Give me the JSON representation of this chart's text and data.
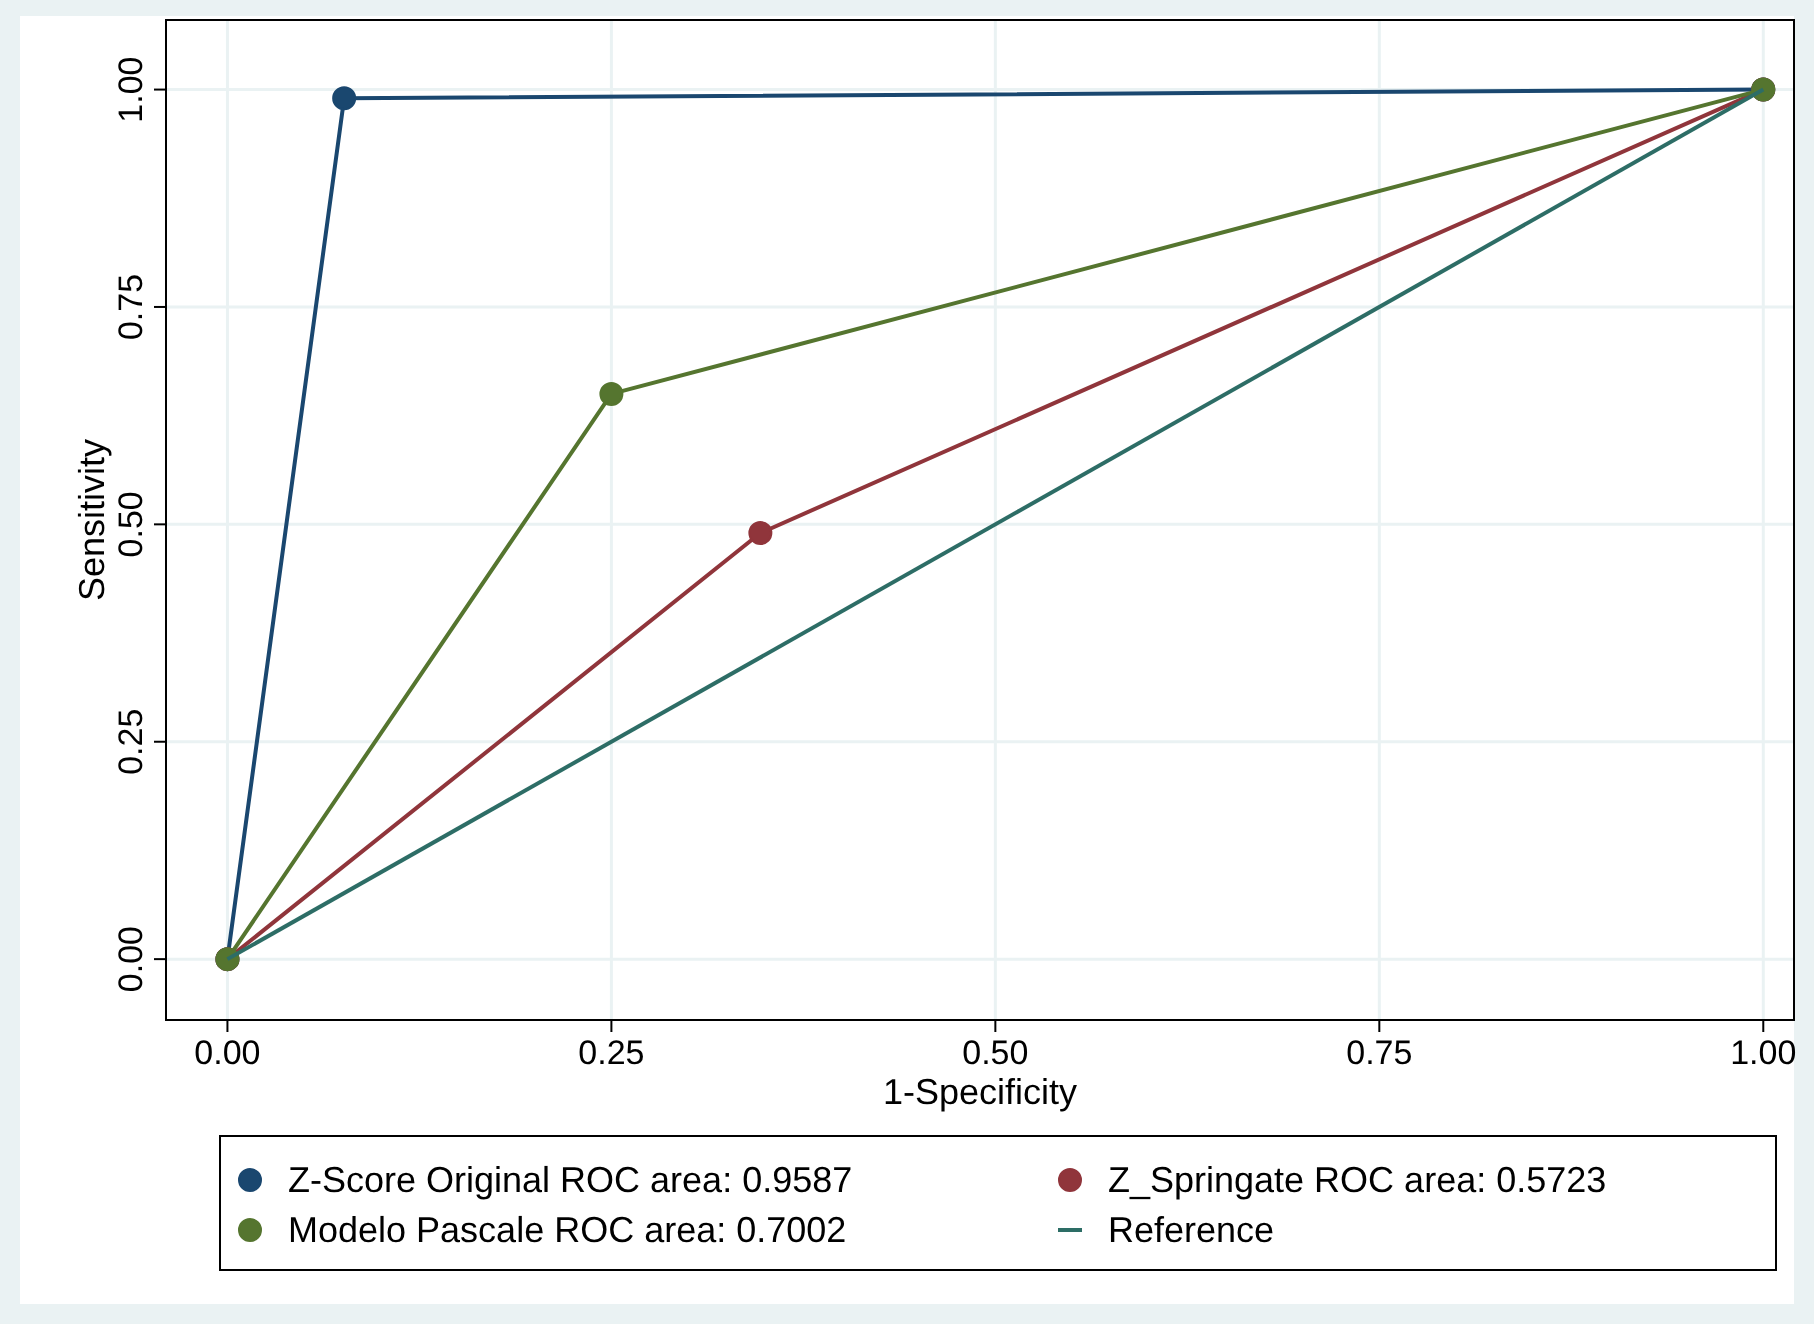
{
  "chart_data": {
    "type": "line",
    "xlabel": "1-Specificity",
    "ylabel": "Sensitivity",
    "xlim": [
      -0.04,
      1.02
    ],
    "ylim": [
      -0.07,
      1.08
    ],
    "xticks": [
      {
        "value": 0,
        "label": "0.00"
      },
      {
        "value": 0.25,
        "label": "0.25"
      },
      {
        "value": 0.5,
        "label": "0.50"
      },
      {
        "value": 0.75,
        "label": "0.75"
      },
      {
        "value": 1,
        "label": "1.00"
      }
    ],
    "yticks": [
      {
        "value": 0,
        "label": "0.00"
      },
      {
        "value": 0.25,
        "label": "0.25"
      },
      {
        "value": 0.5,
        "label": "0.50"
      },
      {
        "value": 0.75,
        "label": "0.75"
      },
      {
        "value": 1,
        "label": "1.00"
      }
    ],
    "grid": true,
    "legend": "bottom",
    "marker": "circle",
    "series": [
      {
        "name": "Z-Score Original ROC area: 0.9587",
        "color": "#1a476f",
        "x": [
          0,
          0.076,
          1
        ],
        "values": [
          0,
          0.99,
          1
        ]
      },
      {
        "name": "Z_Springate ROC area: 0.5723",
        "color": "#90353b",
        "x": [
          0,
          0.347,
          1
        ],
        "values": [
          0,
          0.49,
          1
        ]
      },
      {
        "name": "Modelo Pascale ROC area: 0.7002",
        "color": "#55752f",
        "x": [
          0,
          0.25,
          1
        ],
        "values": [
          0,
          0.65,
          1
        ]
      },
      {
        "name": "Reference",
        "color": "#2d6d66",
        "x": [
          0,
          1
        ],
        "values": [
          0,
          1
        ],
        "marker": "none"
      }
    ]
  }
}
